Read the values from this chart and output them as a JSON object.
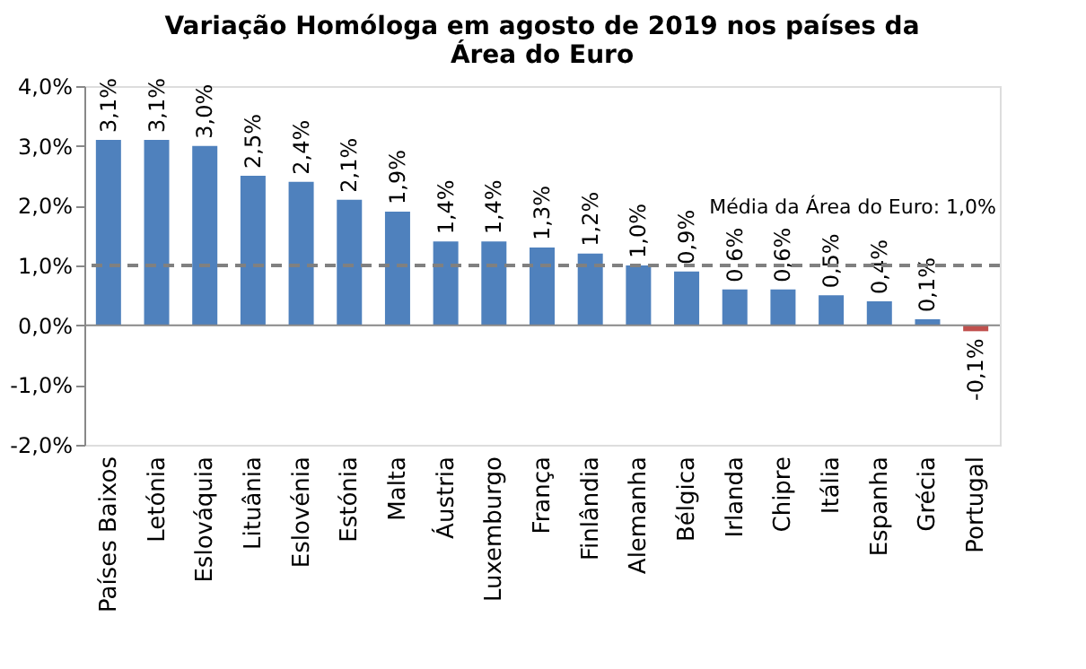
{
  "chart_data": {
    "type": "bar",
    "title": "Variação Homóloga em agosto de 2019 nos países da\nÁrea do Euro",
    "categories": [
      "Países Baixos",
      "Letónia",
      "Eslováquia",
      "Lituânia",
      "Eslovénia",
      "Estónia",
      "Malta",
      "Áustria",
      "Luxemburgo",
      "França",
      "Finlândia",
      "Alemanha",
      "Bélgica",
      "Irlanda",
      "Chipre",
      "Itália",
      "Espanha",
      "Grécia",
      "Portugal"
    ],
    "values": [
      3.1,
      3.1,
      3.0,
      2.5,
      2.4,
      2.1,
      1.9,
      1.4,
      1.4,
      1.3,
      1.2,
      1.0,
      0.9,
      0.6,
      0.6,
      0.5,
      0.4,
      0.1,
      -0.1
    ],
    "colors": [
      "#4f81bd",
      "#4f81bd",
      "#4f81bd",
      "#4f81bd",
      "#4f81bd",
      "#4f81bd",
      "#4f81bd",
      "#4f81bd",
      "#4f81bd",
      "#4f81bd",
      "#4f81bd",
      "#4f81bd",
      "#4f81bd",
      "#4f81bd",
      "#4f81bd",
      "#4f81bd",
      "#4f81bd",
      "#4f81bd",
      "#c0504d"
    ],
    "value_labels": [
      "3,1%",
      "3,1%",
      "3,0%",
      "2,5%",
      "2,4%",
      "2,1%",
      "1,9%",
      "1,4%",
      "1,4%",
      "1,3%",
      "1,2%",
      "1,0%",
      "0,9%",
      "0,6%",
      "0,6%",
      "0,5%",
      "0,4%",
      "0,1%",
      "-0,1%"
    ],
    "ylim": [
      -2.0,
      4.0
    ],
    "yticks": [
      {
        "value": -2.0,
        "label": "-2,0%"
      },
      {
        "value": -1.0,
        "label": "-1,0%"
      },
      {
        "value": 0.0,
        "label": "0,0%"
      },
      {
        "value": 1.0,
        "label": "1,0%"
      },
      {
        "value": 2.0,
        "label": "2,0%"
      },
      {
        "value": 3.0,
        "label": "3,0%"
      },
      {
        "value": 4.0,
        "label": "4,0%"
      }
    ],
    "ref_lines": [
      {
        "axis": "y",
        "value": 1.0,
        "label": "Média da Área do Euro: 1,0%",
        "color": "#808080",
        "line_style": "dashed"
      }
    ],
    "grid": false
  }
}
